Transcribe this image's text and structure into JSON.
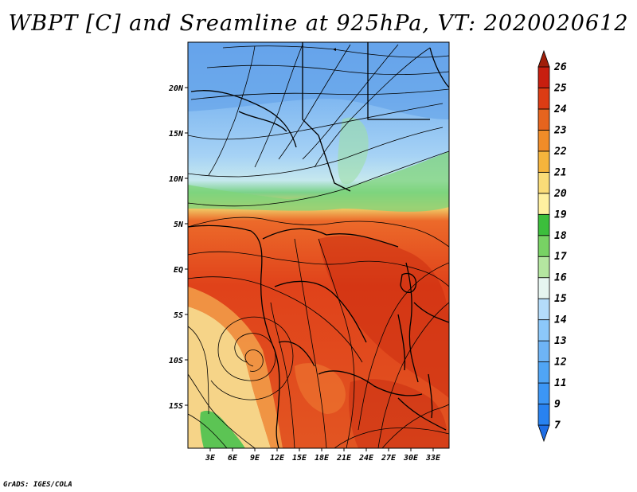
{
  "title": "WBPT [C] and Sreamline at 925hPa, VT: 2020020612",
  "credit": "GrADS: IGES/COLA",
  "map": {
    "lon_range": [
      0,
      35
    ],
    "lat_range": [
      -20,
      24
    ],
    "x_ticks": [
      "3E",
      "6E",
      "9E",
      "12E",
      "15E",
      "18E",
      "21E",
      "24E",
      "27E",
      "30E",
      "33E"
    ],
    "y_ticks": [
      "20N",
      "15N",
      "10N",
      "5N",
      "EQ",
      "5S",
      "10S",
      "15S"
    ]
  },
  "colorbar": {
    "labels": [
      "7",
      "9",
      "11",
      "12",
      "13",
      "14",
      "15",
      "16",
      "17",
      "18",
      "19",
      "20",
      "21",
      "22",
      "23",
      "24",
      "25",
      "26"
    ],
    "colors": [
      "#1e6ee6",
      "#2882f0",
      "#3c96f5",
      "#50a5f5",
      "#6eb4f5",
      "#8cc8fa",
      "#b4dcfa",
      "#e6f5f0",
      "#b4e6a0",
      "#78d264",
      "#3cbe3c",
      "#fff0a0",
      "#fadc78",
      "#f5b43c",
      "#f08c28",
      "#e6641e",
      "#dc3c14",
      "#c81e0f",
      "#a01e0a"
    ]
  }
}
